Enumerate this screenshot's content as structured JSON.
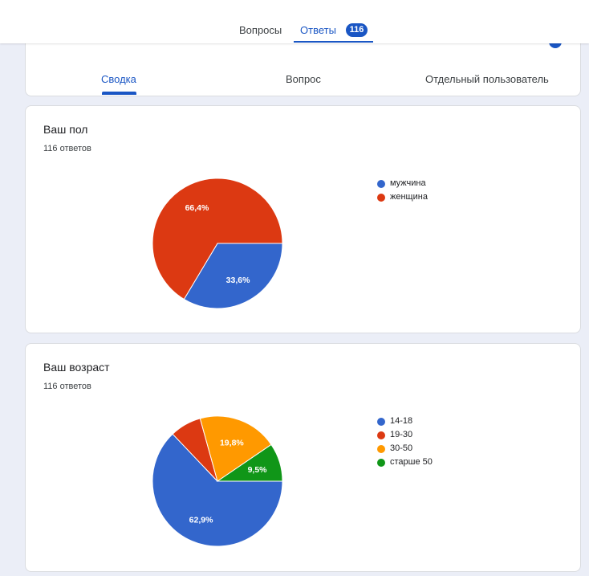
{
  "header": {
    "tabs": [
      {
        "label": "Вопросы"
      },
      {
        "label": "Ответы",
        "badge": "116"
      }
    ]
  },
  "subtabs": [
    "Сводка",
    "Вопрос",
    "Отдельный пользователь"
  ],
  "questions": [
    {
      "title": "Ваш пол",
      "count": "116 ответов"
    },
    {
      "title": "Ваш возраст",
      "count": "116 ответов"
    }
  ],
  "colors": {
    "accent": "#1a56c4",
    "blue": "#3366cc",
    "red": "#dc3912",
    "orange": "#ff9900",
    "green": "#109618"
  },
  "chart_data": [
    {
      "type": "pie",
      "title": "Ваш пол",
      "categories": [
        "мужчина",
        "женщина"
      ],
      "values": [
        33.6,
        66.4
      ],
      "labels": [
        "33,6%",
        "66,4%"
      ],
      "colors": [
        "#3366cc",
        "#dc3912"
      ],
      "legend": "right"
    },
    {
      "type": "pie",
      "title": "Ваш возраст",
      "categories": [
        "14-18",
        "19-30",
        "30-50",
        "старше 50"
      ],
      "values": [
        62.9,
        7.8,
        19.8,
        9.5
      ],
      "labels": [
        "62,9%",
        "",
        "19,8%",
        "9,5%"
      ],
      "colors": [
        "#3366cc",
        "#dc3912",
        "#ff9900",
        "#109618"
      ],
      "legend": "right"
    }
  ]
}
